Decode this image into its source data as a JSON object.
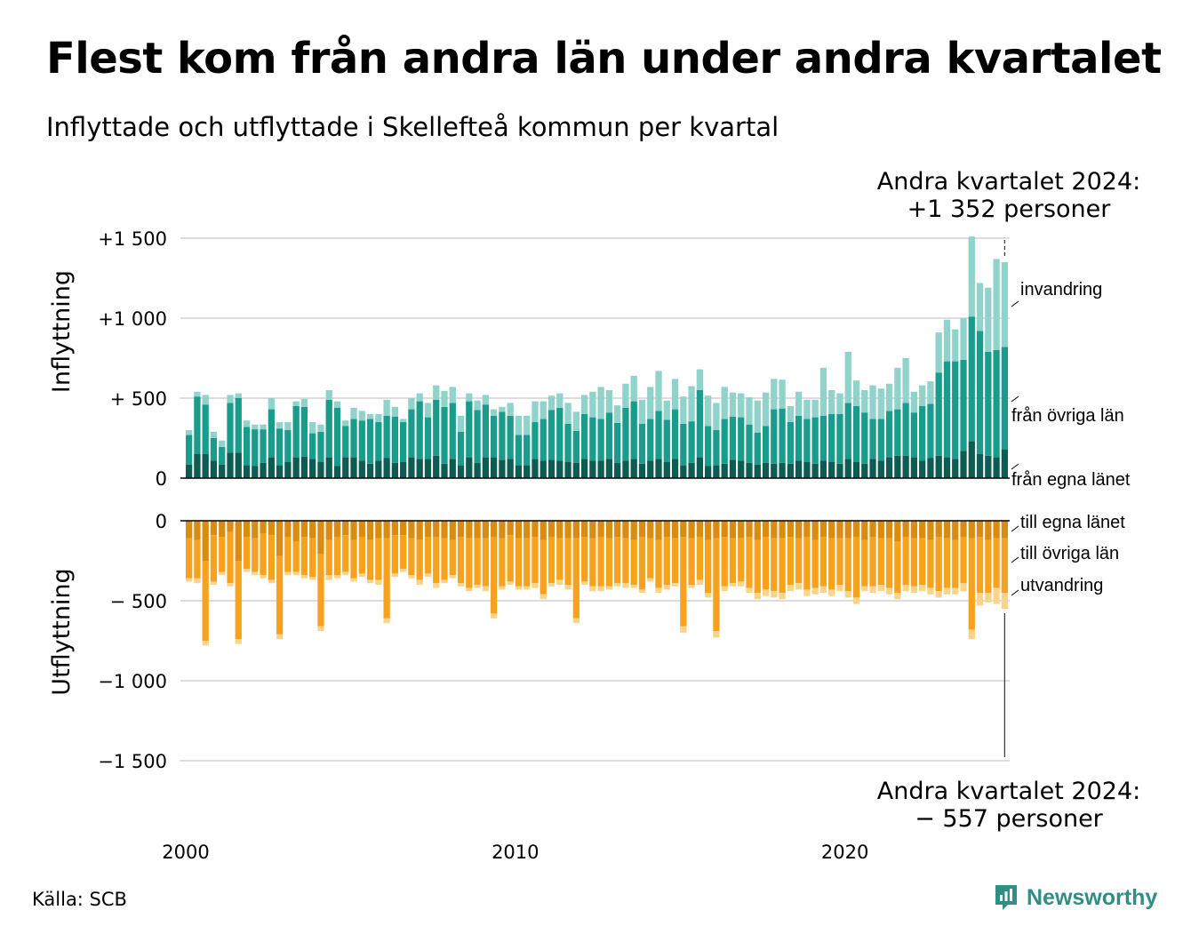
{
  "title": "Flest kom från andra län under andra kvartalet",
  "subtitle": "Inflyttade och utflyttade i Skellefteå kommun per kvartal",
  "callout_top": {
    "line1": "Andra kvartalet 2024:",
    "line2": "+1 352 personer"
  },
  "callout_bottom": {
    "line1": "Andra kvartalet 2024:",
    "line2": "−  557 personer"
  },
  "source": "Källa: SCB",
  "brand": {
    "name": "Newsworthy",
    "icon": "newsworthy-logo-icon"
  },
  "colors": {
    "in_egna": "#0d5b52",
    "in_ovriga": "#1a9c8c",
    "in_invandring": "#8fd3ca",
    "out_egna": "#d98c10",
    "out_ovriga": "#f7a21c",
    "out_utvandring": "#fbd38a",
    "grid": "#dddddd",
    "axis": "#000000"
  },
  "chart_data": {
    "type": "bar",
    "stacked": true,
    "x_start": "2000 Q1",
    "x_end": "2024 Q2",
    "x_ticks": [
      "2000",
      "2010",
      "2020"
    ],
    "panels": [
      {
        "name": "Inflyttning",
        "ylabel": "Inflyttning",
        "ylim": [
          0,
          1500
        ],
        "yticks": [
          0,
          500,
          1000,
          1500
        ],
        "ytick_labels": [
          "0",
          "+  500",
          "+1 000",
          "+1 500"
        ],
        "series": [
          {
            "name": "från egna länet",
            "values": [
              85,
              150,
              150,
              110,
              85,
              160,
              160,
              80,
              75,
              95,
              130,
              80,
              100,
              130,
              135,
              120,
              100,
              130,
              75,
              130,
              130,
              110,
              90,
              110,
              125,
              95,
              100,
              130,
              120,
              120,
              140,
              90,
              120,
              80,
              130,
              95,
              130,
              130,
              115,
              120,
              80,
              80,
              120,
              110,
              115,
              110,
              100,
              95,
              120,
              110,
              110,
              120,
              95,
              110,
              120,
              90,
              110,
              120,
              100,
              120,
              80,
              95,
              130,
              75,
              80,
              90,
              115,
              110,
              95,
              85,
              95,
              90,
              95,
              90,
              110,
              100,
              90,
              110,
              100,
              90,
              120,
              100,
              90,
              120,
              110,
              130,
              140,
              140,
              130,
              110,
              125,
              140,
              130,
              120,
              170,
              230,
              150,
              140,
              130,
              180
            ]
          },
          {
            "name": "från övriga län",
            "values": [
              185,
              360,
              310,
              140,
              110,
              310,
              340,
              240,
              230,
              210,
              300,
              230,
              200,
              320,
              310,
              160,
              190,
              360,
              365,
              195,
              240,
              250,
              280,
              240,
              265,
              290,
              250,
              300,
              360,
              260,
              350,
              355,
              350,
              210,
              350,
              330,
              330,
              260,
              300,
              270,
              190,
              190,
              230,
              260,
              310,
              330,
              240,
              200,
              280,
              270,
              260,
              290,
              250,
              330,
              360,
              250,
              260,
              300,
              265,
              310,
              260,
              260,
              420,
              250,
              220,
              280,
              270,
              270,
              240,
              200,
              230,
              340,
              340,
              260,
              280,
              270,
              290,
              280,
              300,
              310,
              350,
              350,
              320,
              250,
              260,
              290,
              290,
              330,
              280,
              340,
              340,
              520,
              600,
              610,
              570,
              780,
              770,
              650,
              670,
              640
            ]
          },
          {
            "name": "invandring",
            "values": [
              30,
              30,
              60,
              40,
              40,
              50,
              30,
              40,
              30,
              30,
              70,
              40,
              50,
              30,
              50,
              70,
              45,
              60,
              40,
              35,
              70,
              60,
              30,
              50,
              100,
              60,
              20,
              70,
              50,
              90,
              90,
              100,
              100,
              100,
              50,
              60,
              60,
              40,
              30,
              80,
              120,
              120,
              130,
              110,
              90,
              90,
              130,
              120,
              120,
              160,
              200,
              140,
              110,
              150,
              160,
              150,
              200,
              250,
              120,
              190,
              170,
              220,
              130,
              190,
              170,
              200,
              150,
              150,
              170,
              200,
              210,
              190,
              180,
              100,
              150,
              120,
              110,
              300,
              150,
              130,
              320,
              160,
              140,
              210,
              190,
              170,
              260,
              280,
              130,
              130,
              140,
              250,
              260,
              200,
              260,
              500,
              300,
              400,
              570,
              530
            ]
          }
        ]
      },
      {
        "name": "Utflyttning",
        "ylabel": "Utflyttning",
        "ylim": [
          -1500,
          0
        ],
        "yticks": [
          -1500,
          -1000,
          -500,
          0
        ],
        "ytick_labels": [
          "−1 500",
          "−1 000",
          "−  500",
          "0"
        ],
        "series": [
          {
            "name": "till egna länet",
            "values": [
              -110,
              -120,
              -250,
              -90,
              -100,
              -70,
              -250,
              -100,
              -110,
              -80,
              -90,
              -220,
              -100,
              -130,
              -100,
              -110,
              -210,
              -120,
              -100,
              -90,
              -120,
              -100,
              -120,
              -110,
              -110,
              -90,
              -90,
              -110,
              -120,
              -100,
              -100,
              -110,
              -120,
              -100,
              -110,
              -110,
              -110,
              -100,
              -110,
              -90,
              -110,
              -110,
              -100,
              -120,
              -100,
              -110,
              -110,
              -110,
              -100,
              -110,
              -100,
              -110,
              -100,
              -110,
              -120,
              -100,
              -110,
              -120,
              -100,
              -110,
              -100,
              -110,
              -100,
              -120,
              -110,
              -100,
              -110,
              -110,
              -100,
              -120,
              -100,
              -110,
              -110,
              -100,
              -110,
              -100,
              -120,
              -100,
              -110,
              -110,
              -110,
              -100,
              -120,
              -100,
              -110,
              -110,
              -130,
              -100,
              -110,
              -110,
              -120,
              -100,
              -110,
              -120,
              -100,
              -110,
              -100,
              -120,
              -110,
              -110
            ]
          },
          {
            "name": "till övriga län",
            "values": [
              -250,
              -240,
              -500,
              -290,
              -220,
              -320,
              -490,
              -200,
              -210,
              -260,
              -280,
              -490,
              -220,
              -190,
              -240,
              -240,
              -450,
              -220,
              -240,
              -230,
              -240,
              -230,
              -250,
              -260,
              -500,
              -240,
              -210,
              -230,
              -250,
              -230,
              -290,
              -260,
              -220,
              -290,
              -310,
              -290,
              -300,
              -480,
              -300,
              -290,
              -300,
              -300,
              -290,
              -340,
              -290,
              -260,
              -290,
              -500,
              -280,
              -300,
              -310,
              -300,
              -290,
              -280,
              -280,
              -330,
              -250,
              -300,
              -300,
              -280,
              -560,
              -290,
              -270,
              -330,
              -580,
              -310,
              -280,
              -270,
              -320,
              -330,
              -330,
              -330,
              -340,
              -300,
              -280,
              -330,
              -300,
              -310,
              -320,
              -290,
              -330,
              -380,
              -290,
              -310,
              -290,
              -310,
              -320,
              -300,
              -300,
              -290,
              -300,
              -340,
              -310,
              -300,
              -290,
              -570,
              -350,
              -330,
              -310,
              -340
            ]
          },
          {
            "name": "utvandring",
            "values": [
              -20,
              -30,
              -30,
              -20,
              -20,
              -20,
              -30,
              -20,
              -20,
              -20,
              -20,
              -30,
              -20,
              -20,
              -20,
              -20,
              -30,
              -30,
              -20,
              -20,
              -20,
              -20,
              -20,
              -30,
              -30,
              -20,
              -20,
              -20,
              -30,
              -20,
              -30,
              -20,
              -20,
              -20,
              -20,
              -20,
              -30,
              -30,
              -20,
              -20,
              -20,
              -20,
              -30,
              -30,
              -20,
              -30,
              -30,
              -30,
              -20,
              -30,
              -30,
              -20,
              -20,
              -30,
              -20,
              -20,
              -20,
              -30,
              -30,
              -20,
              -40,
              -20,
              -30,
              -30,
              -40,
              -30,
              -20,
              -30,
              -30,
              -40,
              -40,
              -40,
              -40,
              -40,
              -40,
              -40,
              -40,
              -40,
              -40,
              -40,
              -40,
              -40,
              -30,
              -40,
              -40,
              -40,
              -40,
              -40,
              -40,
              -40,
              -40,
              -40,
              -40,
              -40,
              -50,
              -60,
              -80,
              -60,
              -100,
              -100
            ]
          }
        ]
      }
    ],
    "series_labels_in": [
      "invandring",
      "från övriga län",
      "från egna länet"
    ],
    "series_labels_out": [
      "till egna länet",
      "till övriga län",
      "utvandring"
    ],
    "highlight": "2024 Q2"
  }
}
